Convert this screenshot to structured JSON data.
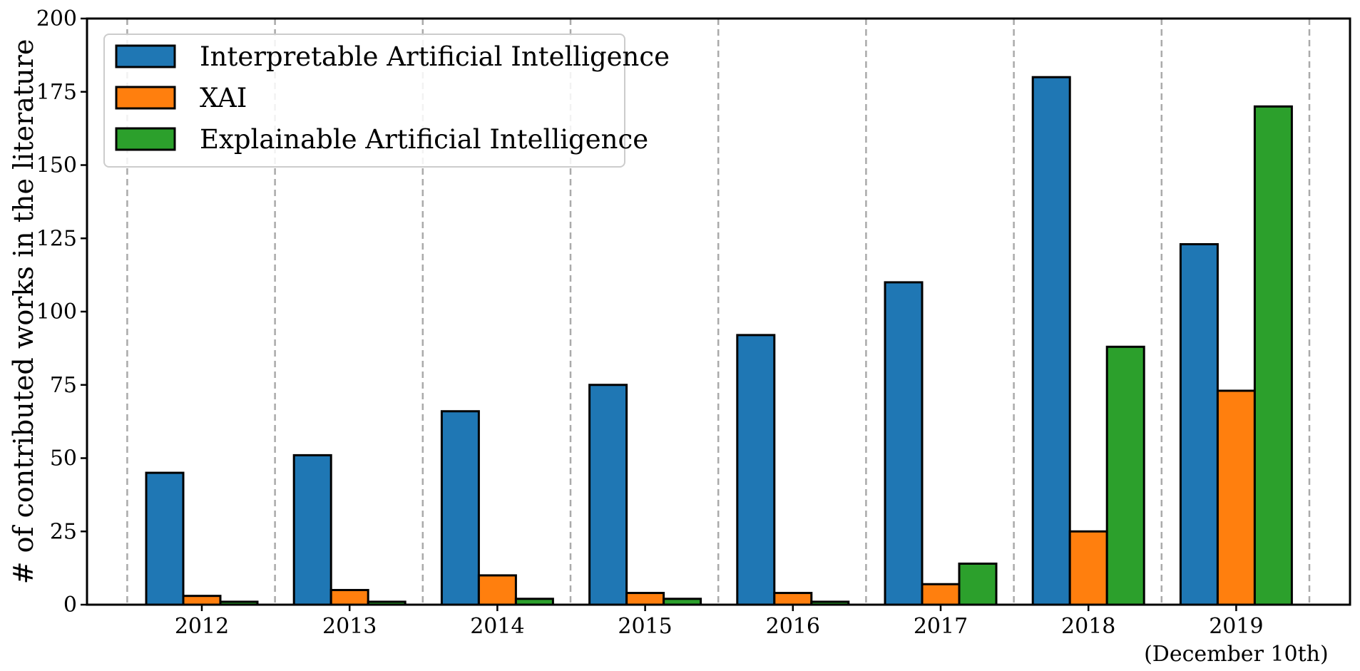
{
  "chart_data": {
    "type": "bar",
    "categories": [
      "2012",
      "2013",
      "2014",
      "2015",
      "2016",
      "2017",
      "2018",
      "2019"
    ],
    "category_sublabels": [
      "",
      "",
      "",
      "",
      "",
      "",
      "",
      "(December 10th)"
    ],
    "series": [
      {
        "name": "Interpretable Artificial Intelligence",
        "color": "#1f77b4",
        "values": [
          45,
          51,
          66,
          75,
          92,
          110,
          180,
          123
        ]
      },
      {
        "name": "XAI",
        "color": "#ff7f0e",
        "values": [
          3,
          5,
          10,
          4,
          4,
          7,
          25,
          73
        ]
      },
      {
        "name": "Explainable Artificial Intelligence",
        "color": "#2ca02c",
        "values": [
          1,
          1,
          2,
          2,
          1,
          14,
          88,
          170
        ]
      }
    ],
    "title": "",
    "xlabel": "",
    "ylabel": "# of contributed works in the literature",
    "ylim": [
      0,
      200
    ],
    "yticks": [
      0,
      25,
      50,
      75,
      100,
      125,
      150,
      175,
      200
    ],
    "legend_position": "top-left",
    "grid": "dashed vertical separators between year groups"
  }
}
